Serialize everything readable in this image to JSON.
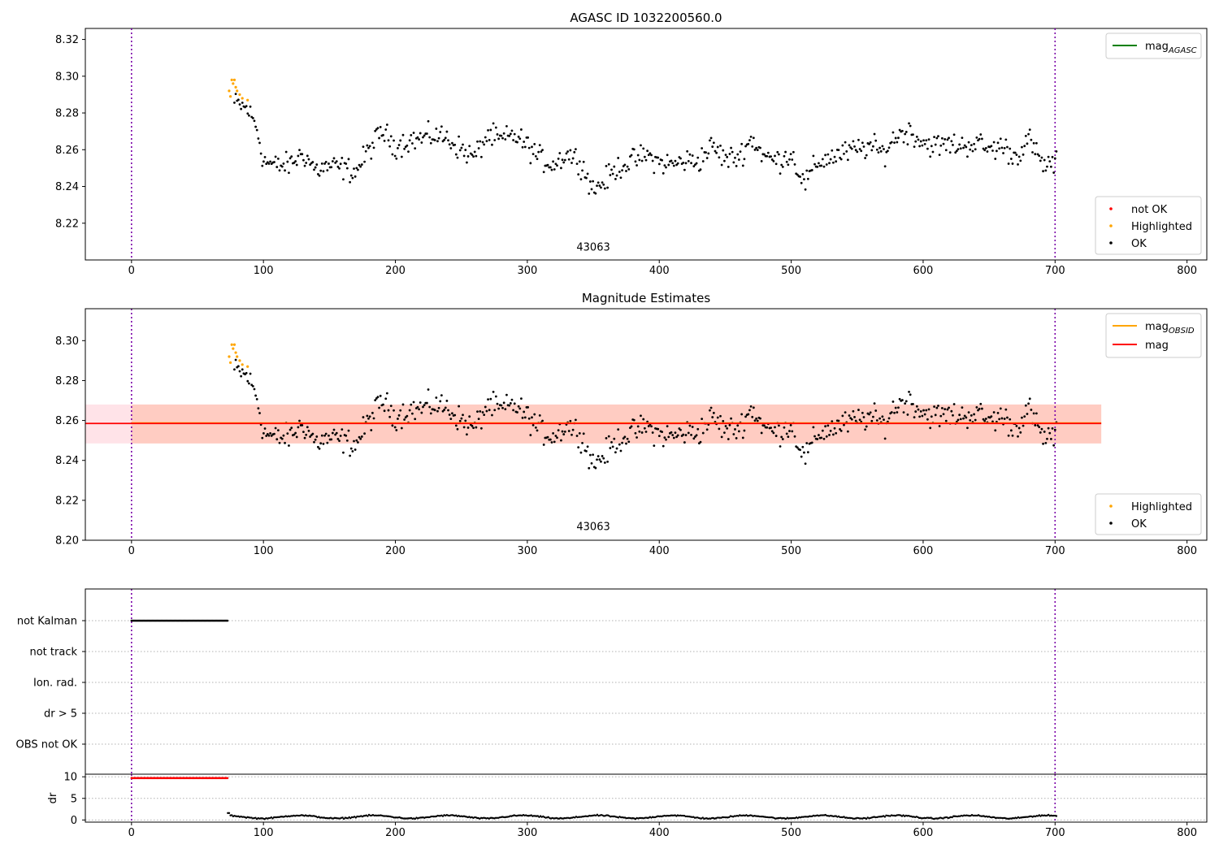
{
  "chart_data": [
    {
      "type": "scatter",
      "title": "AGASC ID 1032200560.0",
      "xlabel": "",
      "ylabel": "",
      "xlim": [
        -35,
        815
      ],
      "ylim": [
        8.2,
        8.326
      ],
      "xticks": [
        0,
        100,
        200,
        300,
        400,
        500,
        600,
        700,
        800
      ],
      "yticks": [
        8.22,
        8.24,
        8.26,
        8.28,
        8.3,
        8.32
      ],
      "grid": false,
      "obsid_label": {
        "text": "43063",
        "x": 350,
        "y": 8.205
      },
      "vlines": [
        0,
        700
      ],
      "vline_color": "#7b00a8",
      "legend_lines": {
        "position": "top-right",
        "entries": [
          {
            "label": "mag",
            "sub": "AGASC",
            "color": "#008000"
          }
        ]
      },
      "legend_points": {
        "position": "bottom-right",
        "entries": [
          {
            "label": "not OK",
            "color": "#ff0000"
          },
          {
            "label": "Highlighted",
            "color": "#ffa500"
          },
          {
            "label": "OK",
            "color": "#000000"
          }
        ]
      },
      "highlighted_points": [
        [
          74,
          8.292
        ],
        [
          75,
          8.289
        ],
        [
          76,
          8.298
        ],
        [
          77,
          8.296
        ],
        [
          78,
          8.298
        ],
        [
          79,
          8.294
        ],
        [
          80,
          8.292
        ],
        [
          82,
          8.29
        ],
        [
          84,
          8.288
        ],
        [
          88,
          8.287
        ]
      ],
      "ok_trend": [
        [
          80,
          8.285
        ],
        [
          88,
          8.282
        ],
        [
          95,
          8.272
        ],
        [
          100,
          8.254
        ],
        [
          110,
          8.251
        ],
        [
          120,
          8.252
        ],
        [
          130,
          8.258
        ],
        [
          140,
          8.249
        ],
        [
          150,
          8.251
        ],
        [
          160,
          8.25
        ],
        [
          170,
          8.248
        ],
        [
          180,
          8.26
        ],
        [
          190,
          8.27
        ],
        [
          200,
          8.262
        ],
        [
          210,
          8.265
        ],
        [
          220,
          8.266
        ],
        [
          230,
          8.268
        ],
        [
          240,
          8.266
        ],
        [
          250,
          8.26
        ],
        [
          260,
          8.256
        ],
        [
          270,
          8.268
        ],
        [
          280,
          8.265
        ],
        [
          290,
          8.268
        ],
        [
          300,
          8.262
        ],
        [
          310,
          8.255
        ],
        [
          320,
          8.252
        ],
        [
          330,
          8.258
        ],
        [
          340,
          8.254
        ],
        [
          350,
          8.238
        ],
        [
          360,
          8.244
        ],
        [
          370,
          8.251
        ],
        [
          380,
          8.254
        ],
        [
          390,
          8.257
        ],
        [
          400,
          8.253
        ],
        [
          410,
          8.252
        ],
        [
          420,
          8.254
        ],
        [
          430,
          8.254
        ],
        [
          440,
          8.262
        ],
        [
          450,
          8.255
        ],
        [
          460,
          8.256
        ],
        [
          470,
          8.266
        ],
        [
          480,
          8.256
        ],
        [
          490,
          8.254
        ],
        [
          500,
          8.258
        ],
        [
          510,
          8.241
        ],
        [
          520,
          8.253
        ],
        [
          530,
          8.256
        ],
        [
          540,
          8.258
        ],
        [
          550,
          8.26
        ],
        [
          560,
          8.262
        ],
        [
          570,
          8.258
        ],
        [
          580,
          8.268
        ],
        [
          590,
          8.27
        ],
        [
          600,
          8.264
        ],
        [
          610,
          8.262
        ],
        [
          620,
          8.263
        ],
        [
          630,
          8.262
        ],
        [
          640,
          8.264
        ],
        [
          650,
          8.26
        ],
        [
          660,
          8.262
        ],
        [
          670,
          8.256
        ],
        [
          680,
          8.266
        ],
        [
          690,
          8.252
        ],
        [
          700,
          8.252
        ]
      ],
      "ok_noise": 0.0055,
      "ok_point_count": 620,
      "ok_x_range": [
        78,
        701
      ]
    },
    {
      "type": "scatter",
      "title": "Magnitude Estimates",
      "xlabel": "",
      "ylabel": "",
      "xlim": [
        -35,
        815
      ],
      "ylim": [
        8.2,
        8.316
      ],
      "xticks": [
        0,
        100,
        200,
        300,
        400,
        500,
        600,
        700,
        800
      ],
      "yticks": [
        8.2,
        8.22,
        8.24,
        8.26,
        8.28,
        8.3
      ],
      "grid": false,
      "obsid_label": {
        "text": "43063",
        "x": 350,
        "y": 8.205
      },
      "vlines": [
        0,
        700
      ],
      "mag": 8.2585,
      "mag_band": [
        8.2485,
        8.268
      ],
      "mag_obsid": 8.2585,
      "legend_lines": {
        "position": "top-right",
        "entries": [
          {
            "label": "mag",
            "sub": "OBSID",
            "color": "#ffa500"
          },
          {
            "label": "mag",
            "sub": "",
            "color": "#ff0000"
          }
        ]
      },
      "legend_points": {
        "position": "bottom-right",
        "entries": [
          {
            "label": "Highlighted",
            "color": "#ffa500"
          },
          {
            "label": "OK",
            "color": "#000000"
          }
        ]
      }
    },
    {
      "type": "scatter",
      "title": "",
      "flag_rows": [
        "not Kalman",
        "not track",
        "Ion. rad.",
        "dr > 5",
        "OBS not OK"
      ],
      "not_kalman_x_range": [
        0,
        73
      ],
      "xlim": [
        -35,
        815
      ],
      "vlines": [
        0,
        700
      ],
      "grid": true
    },
    {
      "type": "scatter",
      "title": "",
      "ylabel": "dr",
      "xlim": [
        -35,
        815
      ],
      "ylim": [
        -0.5,
        10.6
      ],
      "yticks": [
        0,
        5,
        10
      ],
      "xticks": [
        0,
        100,
        200,
        300,
        400,
        500,
        600,
        700,
        800
      ],
      "grid": true,
      "vlines": [
        0,
        700
      ],
      "dr_not_ok_value": 9.7,
      "dr_not_ok_x_range": [
        0,
        73
      ],
      "dr_ok_x_range": [
        73,
        701
      ],
      "dr_ok_level": [
        0.2,
        1.2
      ]
    }
  ]
}
